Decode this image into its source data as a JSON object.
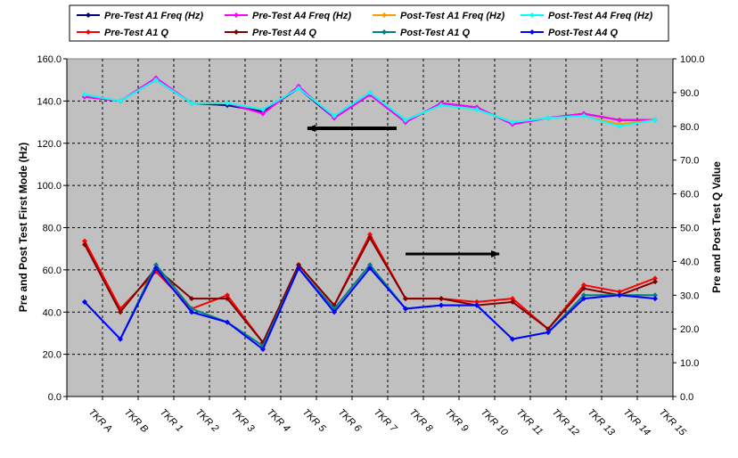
{
  "chart_data": {
    "type": "line",
    "categories": [
      "TKR A",
      "TKR B",
      "TKR 1",
      "TKR 2",
      "TKR 3",
      "TKR 4",
      "TKR 5",
      "TKR 6",
      "TKR 7",
      "TKR 8",
      "TKR 9",
      "TKR 10",
      "TKR 11",
      "TKR 12",
      "TKR 13",
      "TKR 14",
      "TKR 15"
    ],
    "ylabel_left": "Pre and Post Test First Mode (Hz)",
    "ylabel_right": "Pre and Post Test Q Value",
    "ylim_left": [
      0,
      160
    ],
    "ylim_right": [
      0,
      100
    ],
    "yticks_left": [
      "0.0",
      "20.0",
      "40.0",
      "60.0",
      "80.0",
      "100.0",
      "120.0",
      "140.0",
      "160.0"
    ],
    "yticks_right": [
      "0.0",
      "10.0",
      "20.0",
      "30.0",
      "40.0",
      "50.0",
      "60.0",
      "70.0",
      "80.0",
      "90.0",
      "100.0"
    ],
    "grid": true,
    "legend_position": "top",
    "plot_background": "#c0c0c0",
    "series": [
      {
        "name": "Pre-Test A1 Freq (Hz)",
        "axis": "left",
        "color": "#000080",
        "values": [
          142,
          140,
          150,
          139,
          138,
          135,
          146,
          132,
          143,
          130,
          139,
          137,
          129,
          132,
          134,
          131,
          131
        ]
      },
      {
        "name": "Pre-Test A4 Freq (Hz)",
        "axis": "left",
        "color": "#ff00ff",
        "values": [
          142,
          140,
          151,
          139,
          139,
          134,
          147,
          132,
          143,
          130,
          139,
          137,
          129,
          132,
          134,
          131,
          131
        ]
      },
      {
        "name": "Post-Test A1 Freq (Hz)",
        "axis": "left",
        "color": "#ff9900",
        "values": [
          143,
          140,
          150,
          139,
          139,
          136,
          146,
          133,
          144,
          131,
          138,
          136,
          130,
          132,
          133,
          129,
          131
        ]
      },
      {
        "name": "Post-Test A4 Freq (Hz)",
        "axis": "left",
        "color": "#00ffff",
        "values": [
          143,
          140,
          150,
          139,
          139,
          136,
          146,
          133,
          144,
          131,
          138,
          136,
          130,
          132,
          133,
          128,
          131
        ]
      },
      {
        "name": "Pre-Test A1 Q",
        "axis": "right",
        "color": "#ff0000",
        "values": [
          46,
          26,
          37,
          26,
          30,
          16,
          39,
          27,
          48,
          29,
          29,
          28,
          29,
          20,
          33,
          31,
          35
        ]
      },
      {
        "name": "Pre-Test A4 Q",
        "axis": "right",
        "color": "#800000",
        "values": [
          45,
          25,
          38,
          29,
          29,
          16,
          39,
          27,
          47,
          29,
          29,
          27,
          28,
          20,
          32,
          30,
          34
        ]
      },
      {
        "name": "Post-Test A1 Q",
        "axis": "right",
        "color": "#008080",
        "values": [
          28,
          17,
          39,
          26,
          22,
          15,
          38,
          26,
          39,
          26,
          27,
          27,
          17,
          19,
          30,
          30,
          30
        ]
      },
      {
        "name": "Post-Test A4 Q",
        "axis": "right",
        "color": "#0000ff",
        "values": [
          28,
          17,
          38,
          25,
          22,
          14,
          38,
          25,
          38,
          26,
          27,
          27,
          17,
          19,
          29,
          30,
          29
        ]
      }
    ],
    "annotations": [
      {
        "type": "arrow",
        "direction": "left",
        "meaning": "Hz series refer to left axis"
      },
      {
        "type": "arrow",
        "direction": "right",
        "meaning": "Q series refer to right axis"
      }
    ]
  }
}
